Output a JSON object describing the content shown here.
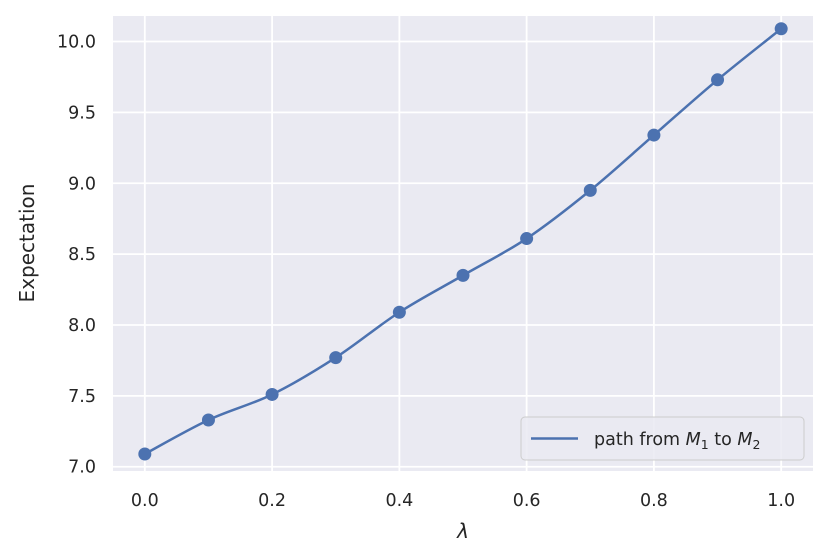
{
  "chart_data": {
    "type": "line",
    "title": "",
    "xlabel": "λ",
    "ylabel": "Expectation",
    "xlim": [
      -0.05,
      1.05
    ],
    "ylim": [
      6.97,
      10.18
    ],
    "xticks": [
      0.0,
      0.2,
      0.4,
      0.6,
      0.8,
      1.0
    ],
    "xtick_labels": [
      "0.0",
      "0.2",
      "0.4",
      "0.6",
      "0.8",
      "1.0"
    ],
    "yticks": [
      7.0,
      7.5,
      8.0,
      8.5,
      9.0,
      9.5,
      10.0
    ],
    "ytick_labels": [
      "7.0",
      "7.5",
      "8.0",
      "8.5",
      "9.0",
      "9.5",
      "10.0"
    ],
    "grid": true,
    "legend_position": "lower-right",
    "series": [
      {
        "name": "path from M1 to M2",
        "legend_parts": {
          "prefix": "path from ",
          "sym1": "M",
          "sub1": "1",
          "middle": " to ",
          "sym2": "M",
          "sub2": "2"
        },
        "color": "#4c72b0",
        "x": [
          0.0,
          0.1,
          0.2,
          0.3,
          0.4,
          0.5,
          0.6,
          0.7,
          0.8,
          0.9,
          1.0
        ],
        "y": [
          7.09,
          7.33,
          7.51,
          7.77,
          8.09,
          8.35,
          8.61,
          8.95,
          9.34,
          9.73,
          10.09
        ]
      }
    ],
    "colors": {
      "background": "#eaeaf2",
      "grid": "#ffffff",
      "line": "#4c72b0",
      "text": "#262626"
    }
  }
}
